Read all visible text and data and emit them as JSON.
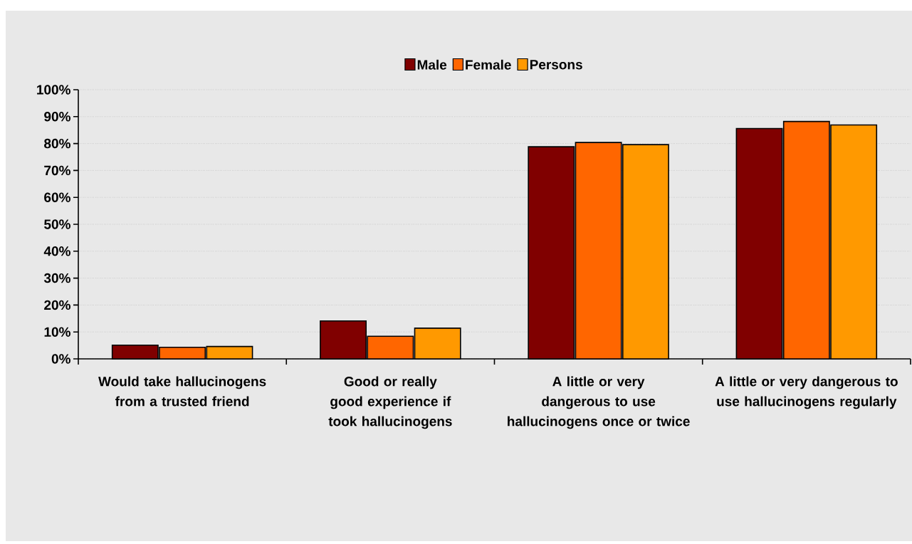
{
  "chart_data": {
    "type": "bar",
    "categories": [
      "Would take hallucinogens from a trusted friend",
      "Good or really good experience if took hallucinogens",
      "A little or very dangerous to use hallucinogens once or twice",
      "A little or very dangerous to use hallucinogens regularly"
    ],
    "series": [
      {
        "name": "Male",
        "color": "#800000",
        "values": [
          5.1,
          14.1,
          78.8,
          85.6
        ]
      },
      {
        "name": "Female",
        "color": "#ff6600",
        "values": [
          4.3,
          8.4,
          80.4,
          88.2
        ]
      },
      {
        "name": "Persons",
        "color": "#ff9900",
        "values": [
          4.6,
          11.4,
          79.6,
          86.9
        ]
      }
    ],
    "ylim": [
      0,
      100
    ],
    "yticks": [
      {
        "value": 0,
        "label": "0%"
      },
      {
        "value": 10,
        "label": "10%"
      },
      {
        "value": 20,
        "label": "20%"
      },
      {
        "value": 30,
        "label": "30%"
      },
      {
        "value": 40,
        "label": "40%"
      },
      {
        "value": 50,
        "label": "50%"
      },
      {
        "value": 60,
        "label": "60%"
      },
      {
        "value": 70,
        "label": "70%"
      },
      {
        "value": 80,
        "label": "80%"
      },
      {
        "value": 90,
        "label": "90%"
      },
      {
        "value": 100,
        "label": "100%"
      }
    ],
    "grid": "y",
    "legend": "top"
  }
}
